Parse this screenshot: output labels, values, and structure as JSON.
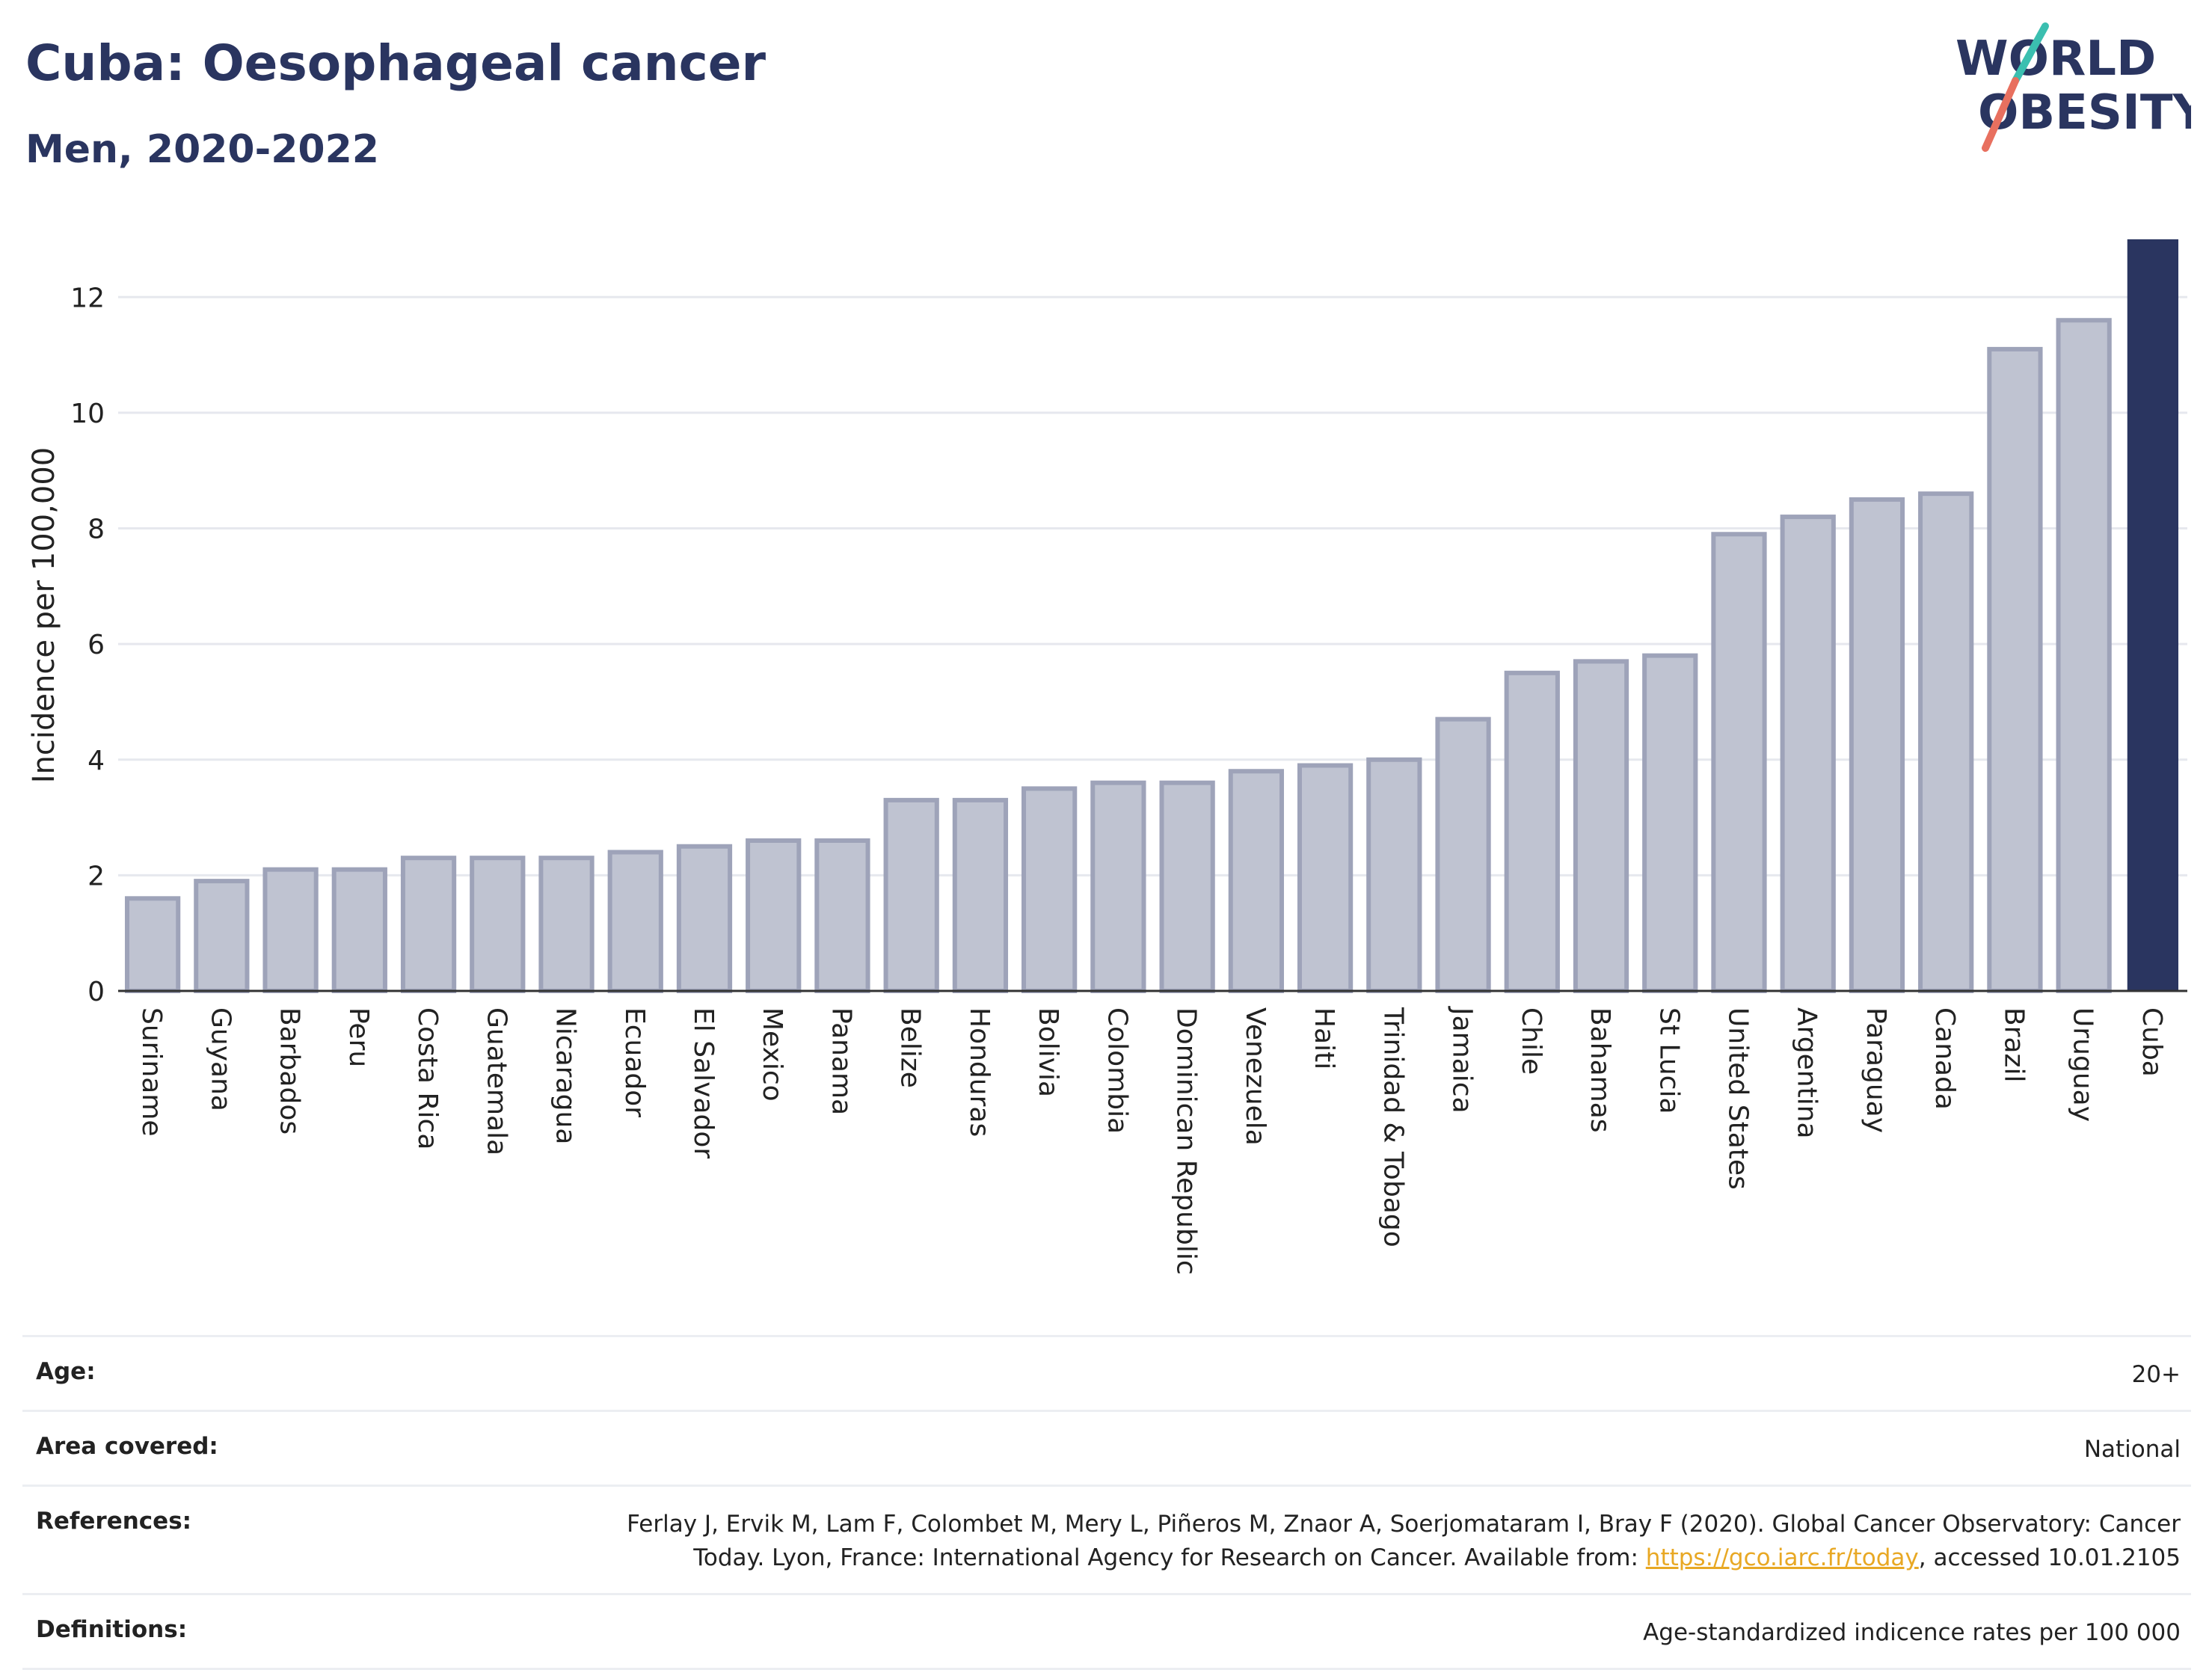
{
  "header": {
    "title": "Cuba: Oesophageal cancer",
    "subtitle": "Men, 2020-2022",
    "logo_line1": "WORLD",
    "logo_line2": "OBESITY"
  },
  "chart_data": {
    "type": "bar",
    "ylabel": "Incidence per 100,000",
    "xlabel": "",
    "ylim": [
      0,
      13
    ],
    "yticks": [
      0,
      2,
      4,
      6,
      8,
      10,
      12
    ],
    "grid": true,
    "highlight": "Cuba",
    "colors": {
      "bar": "#bfc3d1",
      "bar_edge": "#9ea3b9",
      "highlight": "#2a3560",
      "grid": "#e6e8ee"
    },
    "categories": [
      "Suriname",
      "Guyana",
      "Barbados",
      "Peru",
      "Costa Rica",
      "Guatemala",
      "Nicaragua",
      "Ecuador",
      "El Salvador",
      "Mexico",
      "Panama",
      "Belize",
      "Honduras",
      "Bolivia",
      "Colombia",
      "Dominican Republic",
      "Venezuela",
      "Haiti",
      "Trinidad & Tobago",
      "Jamaica",
      "Chile",
      "Bahamas",
      "St Lucia",
      "United States",
      "Argentina",
      "Paraguay",
      "Canada",
      "Brazil",
      "Uruguay",
      "Cuba"
    ],
    "values": [
      1.6,
      1.9,
      2.1,
      2.1,
      2.3,
      2.3,
      2.3,
      2.4,
      2.5,
      2.6,
      2.6,
      3.3,
      3.3,
      3.5,
      3.6,
      3.6,
      3.8,
      3.9,
      4.0,
      4.7,
      5.5,
      5.7,
      5.8,
      7.9,
      8.2,
      8.5,
      8.6,
      11.1,
      11.6,
      13.0
    ]
  },
  "meta": {
    "age_label": "Age:",
    "age_value": "20+",
    "area_label": "Area covered:",
    "area_value": "National",
    "ref_label": "References:",
    "ref_text1": "Ferlay J, Ervik M, Lam F, Colombet M, Mery L, Piñeros M, Znaor A, Soerjomataram I, Bray F (2020). Global Cancer Observatory: Cancer",
    "ref_text2a": "Today. Lyon, France: International Agency for Research on Cancer. Available from: ",
    "ref_link": "https://gco.iarc.fr/today",
    "ref_text2b": ", accessed 10.01.2105",
    "def_label": "Definitions:",
    "def_value": "Age-standardized indicence rates per 100 000"
  }
}
